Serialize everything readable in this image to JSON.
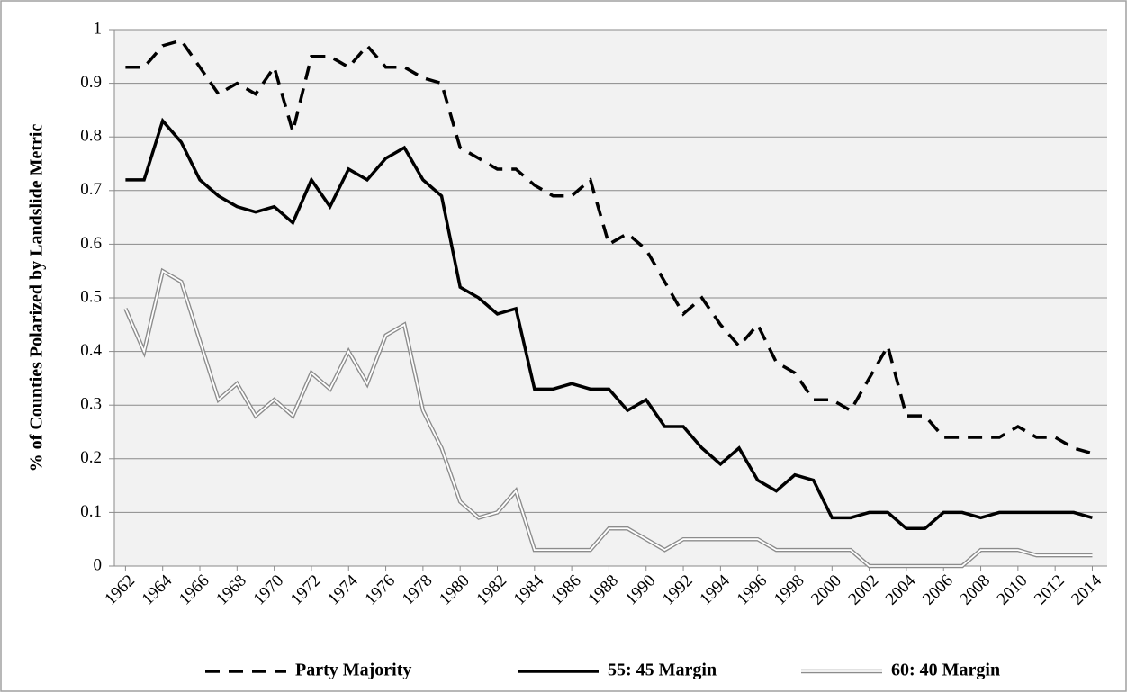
{
  "chart_data": {
    "type": "line",
    "y_label": "% of Counties Polarized by Landslide Metric",
    "x": [
      1962,
      1963,
      1964,
      1965,
      1966,
      1967,
      1968,
      1969,
      1970,
      1971,
      1972,
      1973,
      1974,
      1975,
      1976,
      1977,
      1978,
      1979,
      1980,
      1981,
      1982,
      1983,
      1984,
      1985,
      1986,
      1987,
      1988,
      1989,
      1990,
      1991,
      1992,
      1993,
      1994,
      1995,
      1996,
      1997,
      1998,
      1999,
      2000,
      2001,
      2002,
      2003,
      2004,
      2005,
      2006,
      2007,
      2008,
      2009,
      2010,
      2011,
      2012,
      2013,
      2014
    ],
    "xlim": [
      1961.4,
      2014.8
    ],
    "xticks": [
      1962,
      1964,
      1966,
      1968,
      1970,
      1972,
      1974,
      1976,
      1978,
      1980,
      1982,
      1984,
      1986,
      1988,
      1990,
      1992,
      1994,
      1996,
      1998,
      2000,
      2002,
      2004,
      2006,
      2008,
      2010,
      2012,
      2014
    ],
    "ylim": [
      0,
      1
    ],
    "yticks": [
      0,
      0.1,
      0.2,
      0.3,
      0.4,
      0.5,
      0.6,
      0.7,
      0.8,
      0.9,
      1
    ],
    "grid": true,
    "legend": "bottom",
    "series": [
      {
        "name": "Party Majority",
        "color": "#000000",
        "style": "dashed",
        "values": [
          0.93,
          0.93,
          0.97,
          0.98,
          0.93,
          0.88,
          0.9,
          0.88,
          0.93,
          0.81,
          0.95,
          0.95,
          0.93,
          0.97,
          0.93,
          0.93,
          0.91,
          0.9,
          0.78,
          0.76,
          0.74,
          0.74,
          0.71,
          0.69,
          0.69,
          0.72,
          0.6,
          0.62,
          0.59,
          0.53,
          0.47,
          0.5,
          0.45,
          0.41,
          0.45,
          0.38,
          0.36,
          0.31,
          0.31,
          0.29,
          0.35,
          0.41,
          0.28,
          0.28,
          0.24,
          0.24,
          0.24,
          0.24,
          0.26,
          0.24,
          0.24,
          0.22,
          0.21
        ]
      },
      {
        "name": "55: 45 Margin",
        "color": "#000000",
        "style": "solid",
        "values": [
          0.72,
          0.72,
          0.83,
          0.79,
          0.72,
          0.69,
          0.67,
          0.66,
          0.67,
          0.64,
          0.72,
          0.67,
          0.74,
          0.72,
          0.76,
          0.78,
          0.72,
          0.69,
          0.52,
          0.5,
          0.47,
          0.48,
          0.33,
          0.33,
          0.34,
          0.33,
          0.33,
          0.29,
          0.31,
          0.26,
          0.26,
          0.22,
          0.19,
          0.22,
          0.16,
          0.14,
          0.17,
          0.16,
          0.09,
          0.09,
          0.1,
          0.1,
          0.07,
          0.07,
          0.1,
          0.1,
          0.09,
          0.1,
          0.1,
          0.1,
          0.1,
          0.1,
          0.09
        ]
      },
      {
        "name": "60: 40 Margin",
        "color": "#8c8c8c",
        "style": "double",
        "values": [
          0.48,
          0.4,
          0.55,
          0.53,
          0.42,
          0.31,
          0.34,
          0.28,
          0.31,
          0.28,
          0.36,
          0.33,
          0.4,
          0.34,
          0.43,
          0.45,
          0.29,
          0.22,
          0.12,
          0.09,
          0.1,
          0.14,
          0.03,
          0.03,
          0.03,
          0.03,
          0.07,
          0.07,
          0.05,
          0.03,
          0.05,
          0.05,
          0.05,
          0.05,
          0.05,
          0.03,
          0.03,
          0.03,
          0.03,
          0.03,
          0.0,
          0.0,
          0.0,
          0.0,
          0.0,
          0.0,
          0.03,
          0.03,
          0.03,
          0.02,
          0.02,
          0.02,
          0.02
        ]
      }
    ]
  }
}
